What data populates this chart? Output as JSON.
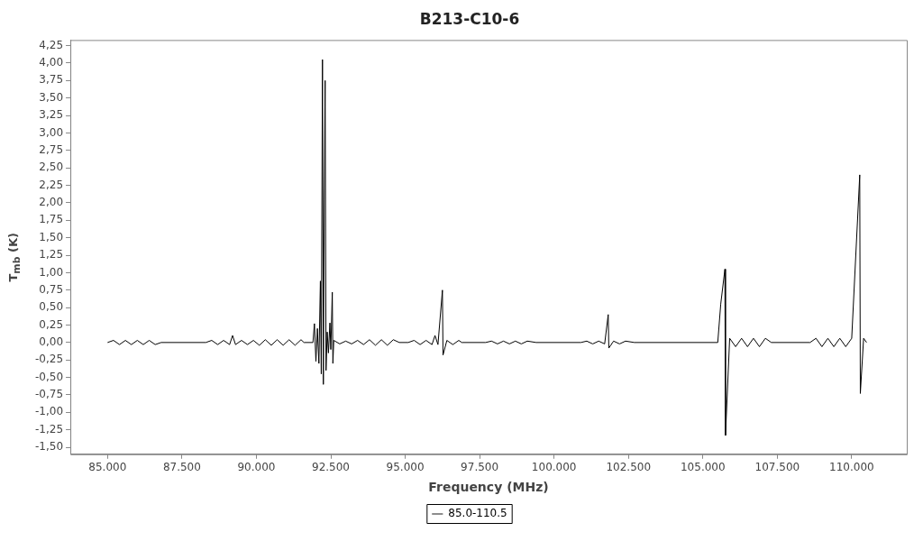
{
  "chart_data": {
    "type": "line",
    "title": "B213-C10-6",
    "xlabel": "Frequency (MHz)",
    "ylabel": "T$_{mb}$ (K)",
    "x": [
      85000,
      85200,
      85400,
      85600,
      85800,
      86000,
      86200,
      86400,
      86600,
      86800,
      88300,
      88500,
      88700,
      88900,
      89100,
      89200,
      89300,
      89500,
      89700,
      89900,
      90100,
      90300,
      90500,
      90700,
      90900,
      91100,
      91300,
      91500,
      91600,
      91900,
      91950,
      92000,
      92050,
      92100,
      92150,
      92180,
      92220,
      92250,
      92280,
      92310,
      92340,
      92380,
      92420,
      92470,
      92500,
      92550,
      92570,
      92600,
      92800,
      93000,
      93200,
      93400,
      93600,
      93800,
      94000,
      94200,
      94400,
      94600,
      94800,
      95100,
      95300,
      95500,
      95700,
      95900,
      96000,
      96100,
      96250,
      96270,
      96400,
      96600,
      96800,
      96900,
      97700,
      97900,
      98100,
      98300,
      98500,
      98700,
      98900,
      99100,
      99400,
      100900,
      101100,
      101300,
      101500,
      101700,
      101820,
      101840,
      102000,
      102200,
      102400,
      102700,
      105500,
      105600,
      105740,
      105760,
      105900,
      106100,
      106300,
      106500,
      106700,
      106900,
      107100,
      107300,
      108600,
      108800,
      109000,
      109200,
      109400,
      109600,
      109800,
      110000,
      110270,
      110290,
      110400,
      110500
    ],
    "series": [
      {
        "name": "85.0-110.5",
        "color": "#000000",
        "values": [
          0,
          0.03,
          -0.03,
          0.03,
          -0.03,
          0.03,
          -0.03,
          0.03,
          -0.03,
          0,
          0,
          0.03,
          -0.03,
          0.03,
          -0.03,
          0.1,
          -0.03,
          0.03,
          -0.03,
          0.03,
          -0.04,
          0.04,
          -0.04,
          0.04,
          -0.04,
          0.04,
          -0.04,
          0.04,
          0,
          0,
          0.27,
          -0.27,
          0.2,
          -0.3,
          0.88,
          -0.45,
          4.05,
          -0.6,
          2.05,
          3.75,
          -0.4,
          0.15,
          -0.15,
          0.28,
          -0.1,
          0.72,
          -0.3,
          0.03,
          -0.02,
          0.02,
          -0.02,
          0.03,
          -0.03,
          0.04,
          -0.04,
          0.04,
          -0.04,
          0.04,
          0,
          0,
          0.03,
          -0.03,
          0.03,
          -0.03,
          0.1,
          -0.03,
          0.75,
          -0.18,
          0.03,
          -0.03,
          0.03,
          0,
          0,
          0.02,
          -0.02,
          0.02,
          -0.02,
          0.02,
          -0.02,
          0.02,
          0,
          0,
          0.02,
          -0.02,
          0.02,
          -0.02,
          0.4,
          -0.08,
          0.02,
          -0.02,
          0.02,
          0,
          0,
          0.55,
          1.05,
          -1.33,
          0.06,
          -0.06,
          0.06,
          -0.06,
          0.06,
          -0.06,
          0.06,
          0,
          0,
          0.06,
          -0.06,
          0.06,
          -0.06,
          0.06,
          -0.06,
          0.06,
          2.4,
          -0.73,
          0.06,
          0
        ]
      }
    ],
    "xlim": [
      83750,
      111850
    ],
    "ylim": [
      -1.6,
      4.33
    ],
    "xticks": [
      {
        "value": 85000,
        "label": "85.000"
      },
      {
        "value": 87500,
        "label": "87.500"
      },
      {
        "value": 90000,
        "label": "90.000"
      },
      {
        "value": 92500,
        "label": "92.500"
      },
      {
        "value": 95000,
        "label": "95.000"
      },
      {
        "value": 97500,
        "label": "97.500"
      },
      {
        "value": 100000,
        "label": "100.000"
      },
      {
        "value": 102500,
        "label": "102.500"
      },
      {
        "value": 105000,
        "label": "105.000"
      },
      {
        "value": 107500,
        "label": "107.500"
      },
      {
        "value": 110000,
        "label": "110.000"
      }
    ],
    "yticks": [
      {
        "value": -1.5,
        "label": "-1,50"
      },
      {
        "value": -1.25,
        "label": "-1,25"
      },
      {
        "value": -1,
        "label": "-1,00"
      },
      {
        "value": -0.75,
        "label": "-0,75"
      },
      {
        "value": -0.5,
        "label": "-0,50"
      },
      {
        "value": -0.25,
        "label": "-0,25"
      },
      {
        "value": 0,
        "label": "0,00"
      },
      {
        "value": 0.25,
        "label": "0,25"
      },
      {
        "value": 0.5,
        "label": "0,50"
      },
      {
        "value": 0.75,
        "label": "0,75"
      },
      {
        "value": 1,
        "label": "1,00"
      },
      {
        "value": 1.25,
        "label": "1,25"
      },
      {
        "value": 1.5,
        "label": "1,50"
      },
      {
        "value": 1.75,
        "label": "1,75"
      },
      {
        "value": 2,
        "label": "2,00"
      },
      {
        "value": 2.25,
        "label": "2,25"
      },
      {
        "value": 2.5,
        "label": "2,50"
      },
      {
        "value": 2.75,
        "label": "2,75"
      },
      {
        "value": 3,
        "label": "3,00"
      },
      {
        "value": 3.25,
        "label": "3,25"
      },
      {
        "value": 3.5,
        "label": "3,50"
      },
      {
        "value": 3.75,
        "label": "3,75"
      },
      {
        "value": 4,
        "label": "4,00"
      },
      {
        "value": 4.25,
        "label": "4,25"
      }
    ],
    "grid": false,
    "legend": "bottom",
    "marker": "none",
    "line_style": "solid"
  }
}
